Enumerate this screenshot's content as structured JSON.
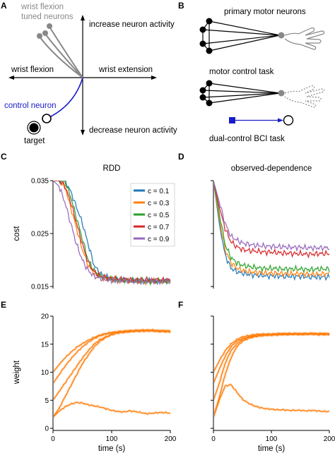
{
  "panels": {
    "A": {
      "letter": "A",
      "tuned_label_1": "wrist flexion",
      "tuned_label_2": "tuned neurons",
      "up_label": "increase neuron activity",
      "down_label": "decrease neuron activity",
      "left_label": "wrist flexion",
      "right_label": "wrist extension",
      "control_label": "control neuron",
      "target_label": "target"
    },
    "B": {
      "letter": "B",
      "title1": "primary motor neurons",
      "title2": "motor control task",
      "title3": "dual-control BCI task"
    },
    "C": {
      "letter": "C"
    },
    "D": {
      "letter": "D"
    },
    "E": {
      "letter": "E"
    },
    "F": {
      "letter": "F"
    }
  },
  "colors": {
    "tuned": "#888888",
    "control": "#1a1acc",
    "weight": "#ff7f0e"
  },
  "chart_data": [
    {
      "type": "line",
      "panel": "C",
      "title": "RDD",
      "ylabel": "cost",
      "xlim": [
        0,
        200
      ],
      "ylim": [
        0.015,
        0.035
      ],
      "yticks": [
        "0.015",
        "0.025",
        "0.035"
      ],
      "legend_position": "top-right",
      "x": [
        0,
        10,
        20,
        30,
        40,
        50,
        60,
        70,
        80,
        90,
        100,
        110,
        120,
        130,
        140,
        150,
        160,
        170,
        180,
        190,
        200
      ],
      "series": [
        {
          "name": "c = 0.1",
          "color": "#1f77b4",
          "values": [
            0.035,
            0.035,
            0.035,
            0.033,
            0.03,
            0.027,
            0.023,
            0.019,
            0.0175,
            0.0168,
            0.0165,
            0.0163,
            0.0162,
            0.0162,
            0.0161,
            0.0161,
            0.016,
            0.016,
            0.016,
            0.016,
            0.016
          ]
        },
        {
          "name": "c = 0.3",
          "color": "#ff7f0e",
          "values": [
            0.035,
            0.035,
            0.034,
            0.03,
            0.026,
            0.022,
            0.019,
            0.0175,
            0.0168,
            0.0165,
            0.0163,
            0.0162,
            0.0162,
            0.0161,
            0.0161,
            0.016,
            0.016,
            0.016,
            0.016,
            0.016,
            0.016
          ]
        },
        {
          "name": "c = 0.5",
          "color": "#2ca02c",
          "values": [
            0.035,
            0.035,
            0.035,
            0.032,
            0.028,
            0.024,
            0.02,
            0.018,
            0.017,
            0.0166,
            0.0164,
            0.0163,
            0.0162,
            0.0162,
            0.0161,
            0.0161,
            0.016,
            0.016,
            0.016,
            0.016,
            0.016
          ]
        },
        {
          "name": "c = 0.7",
          "color": "#d62728",
          "values": [
            0.035,
            0.035,
            0.034,
            0.031,
            0.027,
            0.023,
            0.0195,
            0.0178,
            0.017,
            0.0167,
            0.0165,
            0.0164,
            0.0163,
            0.0163,
            0.0162,
            0.0162,
            0.0162,
            0.0162,
            0.0162,
            0.0162,
            0.0162
          ]
        },
        {
          "name": "c = 0.9",
          "color": "#9467bd",
          "values": [
            0.035,
            0.034,
            0.031,
            0.027,
            0.023,
            0.02,
            0.018,
            0.017,
            0.0165,
            0.0163,
            0.0162,
            0.0161,
            0.0161,
            0.016,
            0.016,
            0.016,
            0.016,
            0.016,
            0.016,
            0.016,
            0.016
          ]
        }
      ]
    },
    {
      "type": "line",
      "panel": "D",
      "title": "observed-dependence",
      "xlim": [
        0,
        200
      ],
      "ylim": [
        0.015,
        0.035
      ],
      "x": [
        0,
        10,
        20,
        30,
        40,
        50,
        60,
        70,
        80,
        90,
        100,
        110,
        120,
        130,
        140,
        150,
        160,
        170,
        180,
        190,
        200
      ],
      "series": [
        {
          "name": "c = 0.1",
          "color": "#1f77b4",
          "values": [
            0.035,
            0.027,
            0.021,
            0.0185,
            0.0178,
            0.0175,
            0.0173,
            0.0172,
            0.0171,
            0.017,
            0.017,
            0.017,
            0.0169,
            0.0169,
            0.0169,
            0.0169,
            0.0168,
            0.0168,
            0.0168,
            0.0168,
            0.0168
          ]
        },
        {
          "name": "c = 0.3",
          "color": "#ff7f0e",
          "values": [
            0.035,
            0.028,
            0.022,
            0.0195,
            0.0185,
            0.018,
            0.0178,
            0.0177,
            0.0176,
            0.0175,
            0.0175,
            0.0175,
            0.0174,
            0.0174,
            0.0174,
            0.0174,
            0.0173,
            0.0173,
            0.0173,
            0.0174,
            0.0174
          ]
        },
        {
          "name": "c = 0.5",
          "color": "#2ca02c",
          "values": [
            0.035,
            0.029,
            0.023,
            0.0205,
            0.0195,
            0.019,
            0.0188,
            0.0186,
            0.0185,
            0.0184,
            0.0184,
            0.0184,
            0.0183,
            0.0183,
            0.0183,
            0.0183,
            0.0182,
            0.0182,
            0.0183,
            0.0183,
            0.0183
          ]
        },
        {
          "name": "c = 0.7",
          "color": "#d62728",
          "values": [
            0.035,
            0.03,
            0.026,
            0.0235,
            0.0225,
            0.022,
            0.0218,
            0.0217,
            0.0216,
            0.0215,
            0.0215,
            0.0214,
            0.0213,
            0.0213,
            0.0212,
            0.0212,
            0.0211,
            0.0211,
            0.0212,
            0.0212,
            0.0212
          ]
        },
        {
          "name": "c = 0.9",
          "color": "#9467bd",
          "values": [
            0.035,
            0.031,
            0.027,
            0.0245,
            0.0238,
            0.0232,
            0.023,
            0.0228,
            0.0227,
            0.0226,
            0.0226,
            0.0225,
            0.0225,
            0.0224,
            0.0224,
            0.0224,
            0.0223,
            0.0223,
            0.0223,
            0.0223,
            0.0223
          ]
        }
      ]
    },
    {
      "type": "line",
      "panel": "E",
      "xlabel": "time (s)",
      "ylabel": "weight",
      "xlim": [
        0,
        200
      ],
      "ylim": [
        0,
        20
      ],
      "xticks": [
        "0",
        "100",
        "200"
      ],
      "yticks": [
        "0",
        "5",
        "10",
        "15",
        "20"
      ],
      "x": [
        0,
        10,
        20,
        30,
        40,
        50,
        60,
        70,
        80,
        90,
        100,
        110,
        120,
        130,
        140,
        150,
        160,
        170,
        180,
        190,
        200
      ],
      "series": [
        {
          "values": [
            2.0,
            3.5,
            5.5,
            7.5,
            9.5,
            11.5,
            13.0,
            14.5,
            15.5,
            16.2,
            16.7,
            17.0,
            17.2,
            17.3,
            17.4,
            17.5,
            17.5,
            17.5,
            17.4,
            17.4,
            17.3
          ]
        },
        {
          "values": [
            5.0,
            6.5,
            8.0,
            9.5,
            11.0,
            12.5,
            13.8,
            15.0,
            15.8,
            16.3,
            16.7,
            17.0,
            17.1,
            17.2,
            17.3,
            17.3,
            17.4,
            17.4,
            17.3,
            17.3,
            17.2
          ]
        },
        {
          "values": [
            8.0,
            9.5,
            11.0,
            12.3,
            13.5,
            14.5,
            15.3,
            16.0,
            16.5,
            16.8,
            17.0,
            17.2,
            17.3,
            17.3,
            17.4,
            17.4,
            17.4,
            17.4,
            17.3,
            17.3,
            17.2
          ]
        },
        {
          "values": [
            10.0,
            11.3,
            12.5,
            13.5,
            14.4,
            15.1,
            15.7,
            16.2,
            16.6,
            16.9,
            17.1,
            17.2,
            17.3,
            17.4,
            17.4,
            17.4,
            17.4,
            17.4,
            17.3,
            17.3,
            17.3
          ]
        },
        {
          "values": [
            2.0,
            3.0,
            3.8,
            4.3,
            4.6,
            4.5,
            4.2,
            4.0,
            3.8,
            3.5,
            3.2,
            3.0,
            2.9,
            3.1,
            3.0,
            2.8,
            2.6,
            2.7,
            2.8,
            2.8,
            2.7
          ]
        }
      ]
    },
    {
      "type": "line",
      "panel": "F",
      "xlabel": "time (s)",
      "xlim": [
        0,
        200
      ],
      "ylim": [
        0,
        20
      ],
      "xticks": [
        "0",
        "100",
        "200"
      ],
      "x": [
        0,
        10,
        20,
        30,
        40,
        50,
        60,
        70,
        80,
        90,
        100,
        110,
        120,
        130,
        140,
        150,
        160,
        170,
        180,
        190,
        200
      ],
      "series": [
        {
          "values": [
            2.0,
            5.5,
            9.5,
            12.5,
            14.5,
            15.5,
            16.0,
            16.3,
            16.5,
            16.6,
            16.7,
            16.7,
            16.8,
            16.8,
            16.8,
            16.8,
            16.8,
            16.9,
            16.8,
            16.8,
            16.8
          ]
        },
        {
          "values": [
            5.0,
            8.0,
            11.5,
            13.8,
            15.0,
            15.8,
            16.2,
            16.4,
            16.5,
            16.6,
            16.6,
            16.7,
            16.7,
            16.7,
            16.8,
            16.7,
            16.8,
            16.8,
            16.7,
            16.7,
            16.7
          ]
        },
        {
          "values": [
            8.0,
            10.5,
            12.8,
            14.5,
            15.5,
            16.0,
            16.3,
            16.5,
            16.6,
            16.7,
            16.7,
            16.7,
            16.8,
            16.8,
            16.8,
            16.8,
            16.8,
            16.8,
            16.8,
            16.8,
            16.8
          ]
        },
        {
          "values": [
            10.0,
            12.0,
            13.8,
            15.0,
            15.8,
            16.3,
            16.5,
            16.7,
            16.8,
            16.8,
            16.8,
            16.9,
            16.9,
            16.9,
            16.9,
            16.9,
            16.9,
            16.9,
            16.9,
            16.9,
            16.9
          ]
        },
        {
          "values": [
            2.0,
            5.0,
            7.5,
            7.8,
            6.5,
            5.2,
            4.5,
            4.0,
            3.7,
            3.5,
            3.4,
            3.3,
            3.3,
            3.2,
            3.2,
            3.2,
            3.1,
            3.2,
            3.1,
            3.0,
            3.0
          ]
        }
      ]
    }
  ]
}
